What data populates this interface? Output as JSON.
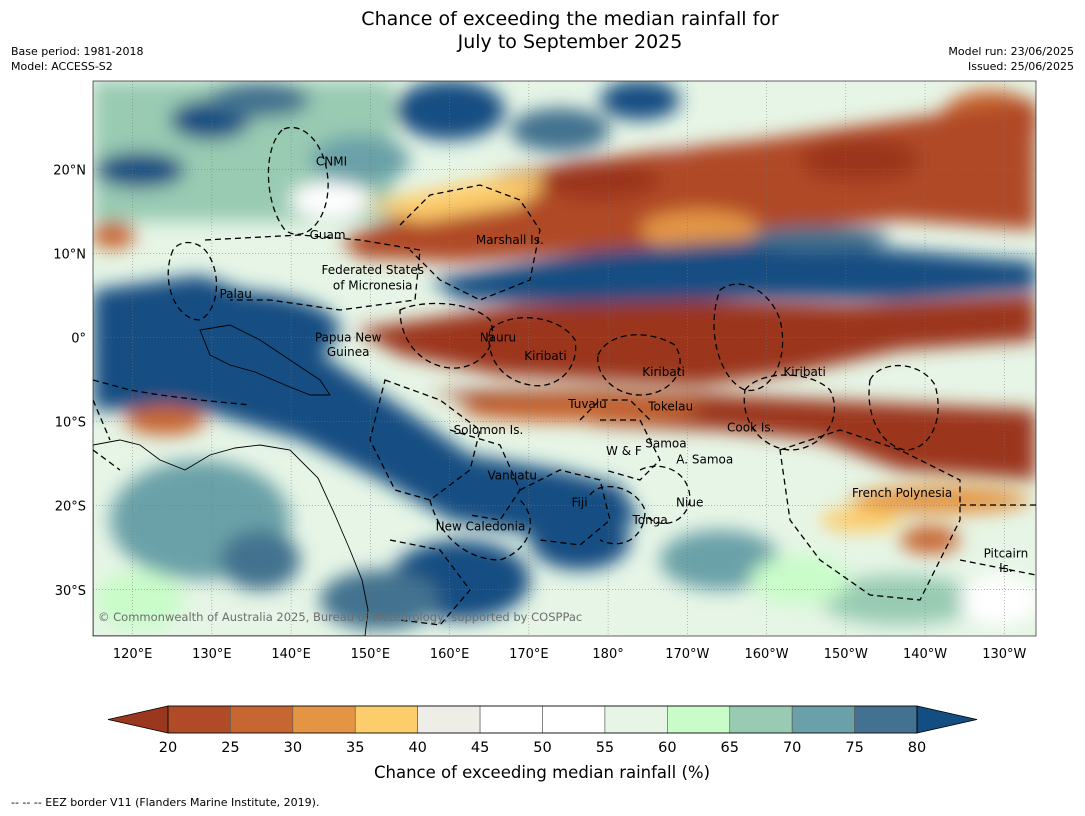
{
  "title_line1": "Chance of exceeding the median rainfall for",
  "title_line2": "July to September 2025",
  "meta_left": {
    "base_period": "Base period: 1981-2018",
    "model": "Model: ACCESS-S2"
  },
  "meta_right": {
    "model_run": "Model run: 23/06/2025",
    "issued": "Issued: 25/06/2025"
  },
  "copyright": "© Commonwealth of Australia 2025, Bureau of Meteorology, supported by COSPPac",
  "footer_note": "--  --  -- EEZ border V11 (Flanders Marine Institute, 2019).",
  "map": {
    "lon_ticks": [
      "120°E",
      "130°E",
      "140°E",
      "150°E",
      "160°E",
      "170°E",
      "180°",
      "170°W",
      "160°W",
      "150°W",
      "140°W",
      "130°W"
    ],
    "lat_ticks": [
      "20°N",
      "10°N",
      "0°",
      "10°S",
      "20°S",
      "30°S"
    ],
    "regions": [
      {
        "name": "CNMI",
        "lon": 145.1,
        "lat": 20.9
      },
      {
        "name": "Guam",
        "lon": 144.6,
        "lat": 12.2
      },
      {
        "name": "Marshall Is.",
        "lon": 167.6,
        "lat": 11.6
      },
      {
        "name": "Federated States",
        "lon": 150.3,
        "lat": 8.0
      },
      {
        "name": "of Micronesia",
        "lon": 150.3,
        "lat": 6.2
      },
      {
        "name": "Palau",
        "lon": 133.0,
        "lat": 5.2
      },
      {
        "name": "Papua New",
        "lon": 147.2,
        "lat": 0.0
      },
      {
        "name": "Guinea",
        "lon": 147.2,
        "lat": -1.7
      },
      {
        "name": "Nauru",
        "lon": 166.1,
        "lat": 0.0
      },
      {
        "name": "Kiribati",
        "lon": 172.1,
        "lat": -2.2
      },
      {
        "name": "Kiribati",
        "lon": 187.0,
        "lat": -4.1
      },
      {
        "name": "Kiribati",
        "lon": 204.8,
        "lat": -4.1
      },
      {
        "name": "Tuvalu",
        "lon": 177.4,
        "lat": -7.9
      },
      {
        "name": "Tokelau",
        "lon": 187.9,
        "lat": -8.2
      },
      {
        "name": "Cook Is.",
        "lon": 198.0,
        "lat": -10.7
      },
      {
        "name": "Solomon Is.",
        "lon": 164.9,
        "lat": -11.0
      },
      {
        "name": "Samoa",
        "lon": 187.3,
        "lat": -12.6
      },
      {
        "name": "W & F",
        "lon": 182.0,
        "lat": -13.5
      },
      {
        "name": "A. Samoa",
        "lon": 192.2,
        "lat": -14.5
      },
      {
        "name": "Vanuatu",
        "lon": 167.9,
        "lat": -16.4
      },
      {
        "name": "French Polynesia",
        "lon": 217.1,
        "lat": -18.5
      },
      {
        "name": "Fiji",
        "lon": 176.4,
        "lat": -19.6
      },
      {
        "name": "Niue",
        "lon": 190.3,
        "lat": -19.6
      },
      {
        "name": "Tonga",
        "lon": 185.3,
        "lat": -21.7
      },
      {
        "name": "New Caledonia",
        "lon": 163.9,
        "lat": -22.5
      },
      {
        "name": "Pitcairn",
        "lon": 230.2,
        "lat": -25.7
      },
      {
        "name": "Is.",
        "lon": 230.2,
        "lat": -27.4
      }
    ]
  },
  "colorbar": {
    "title": "Chance of exceeding median rainfall (%)",
    "ticks": [
      "20",
      "25",
      "30",
      "35",
      "40",
      "45",
      "50",
      "55",
      "60",
      "65",
      "70",
      "75",
      "80"
    ],
    "colors": [
      "#9b361f",
      "#b04a27",
      "#c86631",
      "#e39544",
      "#fdcc6b",
      "#efede8",
      "#ffffff",
      "#ffffff",
      "#e6f5e6",
      "#c9fcc9",
      "#99cbb3",
      "#6aa1a8",
      "#42728f",
      "#124e82"
    ]
  }
}
